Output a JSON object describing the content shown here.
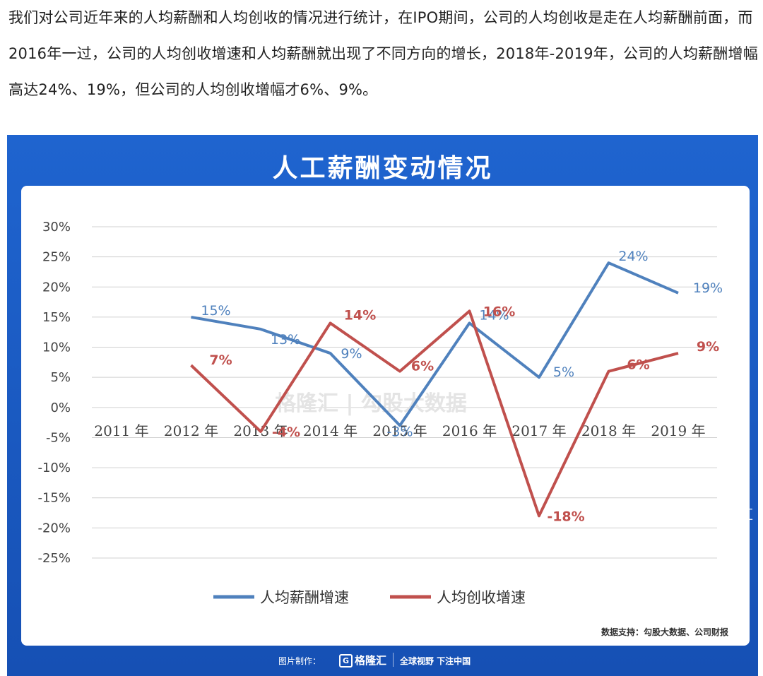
{
  "intro_text": "我们对公司近年来的人均薪酬和人均创收的情况进行统计，在IPO期间，公司的人均创收是走在人均薪酬前面，而2016年一过，公司的人均创收增速和人均薪酬就出现了不同方向的增长，2018年-2019年，公司的人均薪酬增幅高达24%、19%，但公司的人均创收增幅才6%、9%。",
  "source_note": "数据支持：勾股大数据、公司财报",
  "footer": {
    "made_by": "图片制作：",
    "logo_text": "格隆汇",
    "slogan": "全球视野 下注中国"
  },
  "corner_logo_text": "格隆汇",
  "watermark_text": "格隆汇 | 勾股大数据",
  "colors": {
    "card_bg": "#1a5bc4",
    "salary": "#4f81bd",
    "revenue": "#c0504d",
    "grid": "#d0d0d0"
  },
  "chart_data": {
    "type": "line",
    "title": "人工薪酬变动情况",
    "categories": [
      "2011 年",
      "2012 年",
      "2013 年",
      "2014 年",
      "2015 年",
      "2016 年",
      "2017 年",
      "2018 年",
      "2019 年"
    ],
    "y_ticks": [
      "30%",
      "25%",
      "20%",
      "15%",
      "10%",
      "5%",
      "0%",
      "-5%",
      "-10%",
      "-15%",
      "-20%",
      "-25%"
    ],
    "ylim": [
      -25,
      30
    ],
    "grid": true,
    "legend_position": "bottom",
    "series": [
      {
        "name": "人均薪酬增速",
        "color": "#4f81bd",
        "values": [
          null,
          15,
          13,
          9,
          -3,
          14,
          5,
          24,
          19
        ],
        "labels": [
          null,
          "15%",
          "13%",
          "9%",
          "-3%",
          "14%",
          "5%",
          "24%",
          "19%"
        ]
      },
      {
        "name": "人均创收增速",
        "color": "#c0504d",
        "values": [
          null,
          7,
          -4,
          14,
          6,
          16,
          -18,
          6,
          9
        ],
        "labels": [
          null,
          "7%",
          "-4%",
          "14%",
          "6%",
          "16%",
          "-18%",
          "6%",
          "9%"
        ]
      }
    ]
  }
}
